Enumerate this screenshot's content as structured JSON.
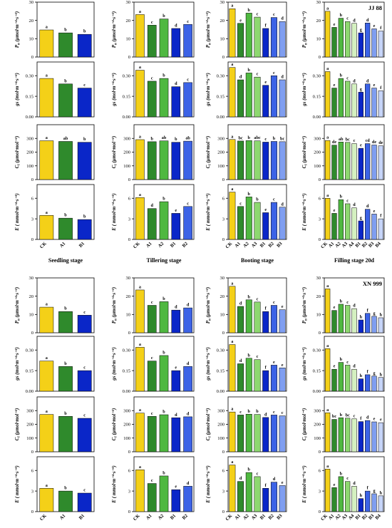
{
  "figure": {
    "colors": {
      "CK": "#f4d018",
      "A1": "#2f8a2c",
      "A2": "#4fb840",
      "A3": "#8ed870",
      "A4": "#d4f0c0",
      "B1": "#0a26c8",
      "B2": "#3c63e6",
      "B3": "#7f9ef0",
      "B4": "#c6d4f8"
    },
    "stage_labels": [
      "Seedling stage",
      "Tillering stage",
      "Booting stage",
      "Filling stage 20d"
    ],
    "stage_categories": [
      [
        "CK",
        "A1",
        "B1"
      ],
      [
        "CK",
        "A1",
        "A2",
        "B1",
        "B2"
      ],
      [
        "CK",
        "A1",
        "A2",
        "A3",
        "B1",
        "B2",
        "B3"
      ],
      [
        "CK",
        "A1",
        "A2",
        "A3",
        "A4",
        "B1",
        "B2",
        "B3",
        "B4"
      ]
    ],
    "rows": [
      {
        "ylabel_main": "P",
        "ylabel_sub": "n",
        "ylabel_unit": " (μmol·m⁻²·s⁻¹)",
        "ylim": [
          0,
          30
        ],
        "ticks": [
          0,
          10,
          20,
          30
        ]
      },
      {
        "ylabel_main": "gs",
        "ylabel_sub": "",
        "ylabel_unit": " (mol·m⁻²·s⁻¹)",
        "ylim": [
          0,
          0.4
        ],
        "ticks": [
          0.0,
          0.15,
          0.3
        ]
      },
      {
        "ylabel_main": "C",
        "ylabel_sub": "i",
        "ylabel_unit": " (μmol·mol⁻¹)",
        "ylim": [
          0,
          400
        ],
        "ticks": [
          0,
          100,
          200,
          300
        ]
      },
      {
        "ylabel_main": "E",
        "ylabel_sub": "",
        "ylabel_unit": " ( mmol·m⁻²·s⁻¹)",
        "ylim": [
          0,
          8
        ],
        "ticks": [
          0,
          3,
          6
        ]
      }
    ]
  },
  "chart_data": [
    {
      "type": "bar",
      "cultivar": "JJ 88",
      "panels": [
        [
          {
            "values": [
              14.8,
              13.2,
              12.4
            ],
            "sig": [
              "a",
              "b",
              "b"
            ]
          },
          {
            "values": [
              23.2,
              17.4,
              20.8,
              15.6,
              17.8
            ],
            "sig": [
              "a",
              "c",
              "b",
              "d",
              "c"
            ]
          },
          {
            "values": [
              26.4,
              18.4,
              24.0,
              21.8,
              15.6,
              21.6,
              19.4
            ],
            "sig": [
              "a",
              "e",
              "b",
              "c",
              "f",
              "c",
              "d"
            ]
          },
          {
            "values": [
              25.0,
              16.2,
              21.2,
              19.4,
              18.4,
              13.2,
              18.6,
              15.4,
              14.2
            ],
            "sig": [
              "a",
              "e",
              "b",
              "c",
              "d",
              "g",
              "d",
              "e",
              "f"
            ]
          }
        ],
        [
          {
            "values": [
              0.28,
              0.24,
              0.21
            ],
            "sig": [
              "a",
              "b",
              "c"
            ]
          },
          {
            "values": [
              0.34,
              0.26,
              0.28,
              0.22,
              0.25
            ],
            "sig": [
              "a",
              "c",
              "b",
              "d",
              "c"
            ]
          },
          {
            "values": [
              0.36,
              0.27,
              0.32,
              0.29,
              0.23,
              0.3,
              0.27
            ],
            "sig": [
              "a",
              "d",
              "b",
              "c",
              "e",
              "c",
              "d"
            ]
          },
          {
            "values": [
              0.33,
              0.21,
              0.28,
              0.26,
              0.24,
              0.18,
              0.24,
              0.21,
              0.19
            ],
            "sig": [
              "a",
              "e",
              "b",
              "c",
              "d",
              "g",
              "d",
              "e",
              "f"
            ]
          }
        ],
        [
          {
            "values": [
              283,
              278,
              272
            ],
            "sig": [
              "a",
              "ab",
              "b"
            ]
          },
          {
            "values": [
              291,
              276,
              282,
              272,
              280
            ],
            "sig": [
              "a",
              "b",
              "ab",
              "b",
              "ab"
            ]
          },
          {
            "values": [
              292,
              281,
              284,
              282,
              273,
              278,
              276
            ],
            "sig": [
              "a",
              "bc",
              "b",
              "abc",
              "c",
              "b",
              "bc"
            ]
          },
          {
            "values": [
              285,
              251,
              274,
              271,
              262,
              228,
              262,
              252,
              246
            ],
            "sig": [
              "a",
              "de",
              "ab",
              "bc",
              "c",
              "e",
              "cd",
              "de",
              "de"
            ]
          }
        ],
        [
          {
            "values": [
              3.5,
              3.1,
              2.9
            ],
            "sig": [
              "a",
              "b",
              "b"
            ]
          },
          {
            "values": [
              6.1,
              4.5,
              5.5,
              3.8,
              4.8
            ],
            "sig": [
              "a",
              "d",
              "b",
              "e",
              "c"
            ]
          },
          {
            "values": [
              6.9,
              4.8,
              6.2,
              5.4,
              3.9,
              5.4,
              4.7
            ],
            "sig": [
              "a",
              "c",
              "b",
              "b",
              "e",
              "c",
              "d"
            ]
          },
          {
            "values": [
              6.0,
              3.8,
              5.8,
              5.2,
              4.6,
              2.7,
              4.4,
              3.7,
              3.0
            ],
            "sig": [
              "a",
              "e",
              "b",
              "c",
              "d",
              "g",
              "d",
              "e",
              "f"
            ]
          }
        ]
      ]
    },
    {
      "type": "bar",
      "cultivar": "XN 999",
      "panels": [
        [
          {
            "values": [
              14.0,
              11.6,
              9.6
            ],
            "sig": [
              "a",
              "b",
              "c"
            ]
          },
          {
            "values": [
              23.4,
              15.0,
              17.0,
              12.4,
              13.6
            ],
            "sig": [
              "a",
              "c",
              "b",
              "d",
              "d"
            ]
          },
          {
            "values": [
              25.4,
              14.4,
              18.0,
              16.8,
              11.6,
              15.0,
              12.6
            ],
            "sig": [
              "a",
              "d",
              "b",
              "c",
              "f",
              "c",
              "e"
            ]
          },
          {
            "values": [
              24.0,
              12.2,
              15.6,
              15.0,
              13.2,
              7.0,
              10.6,
              9.0,
              8.2
            ],
            "sig": [
              "a",
              "e",
              "b",
              "c",
              "d",
              "h",
              "f",
              "g",
              "h"
            ]
          }
        ],
        [
          {
            "values": [
              0.22,
              0.18,
              0.15
            ],
            "sig": [
              "a",
              "b",
              "c"
            ]
          },
          {
            "values": [
              0.32,
              0.22,
              0.26,
              0.15,
              0.18
            ],
            "sig": [
              "a",
              "c",
              "b",
              "e",
              "d"
            ]
          },
          {
            "values": [
              0.34,
              0.2,
              0.24,
              0.23,
              0.15,
              0.19,
              0.17
            ],
            "sig": [
              "a",
              "d",
              "b",
              "c",
              "f",
              "e",
              "e"
            ]
          },
          {
            "values": [
              0.31,
              0.16,
              0.21,
              0.19,
              0.16,
              0.09,
              0.12,
              0.11,
              0.1
            ],
            "sig": [
              "a",
              "e",
              "b",
              "c",
              "d",
              "h",
              "f",
              "g",
              "h"
            ]
          }
        ],
        [
          {
            "values": [
              272,
              258,
              244
            ],
            "sig": [
              "a",
              "b",
              "c"
            ]
          },
          {
            "values": [
              282,
              258,
              270,
              248,
              255
            ],
            "sig": [
              "a",
              "c",
              "b",
              "d",
              "d"
            ]
          },
          {
            "values": [
              290,
              268,
              274,
              272,
              250,
              268,
              262
            ],
            "sig": [
              "a",
              "c",
              "b",
              "b",
              "d",
              "c",
              "c"
            ]
          },
          {
            "values": [
              284,
              236,
              248,
              245,
              240,
              220,
              228,
              218,
              212
            ],
            "sig": [
              "a",
              "bc",
              "b",
              "bc",
              "c",
              "f",
              "d",
              "e",
              "e"
            ]
          }
        ],
        [
          {
            "values": [
              3.4,
              3.0,
              2.7
            ],
            "sig": [
              "a",
              "b",
              "c"
            ]
          },
          {
            "values": [
              6.1,
              4.1,
              5.2,
              3.2,
              3.7
            ],
            "sig": [
              "a",
              "c",
              "b",
              "e",
              "d"
            ]
          },
          {
            "values": [
              6.8,
              4.4,
              5.7,
              5.1,
              3.4,
              4.3,
              3.8
            ],
            "sig": [
              "a",
              "d",
              "b",
              "c",
              "f",
              "d",
              "e"
            ]
          },
          {
            "values": [
              6.2,
              3.5,
              5.1,
              4.4,
              3.7,
              1.9,
              3.0,
              2.6,
              2.3
            ],
            "sig": [
              "a",
              "e",
              "b",
              "c",
              "d",
              "h",
              "f",
              "g",
              "h"
            ]
          }
        ]
      ]
    }
  ]
}
